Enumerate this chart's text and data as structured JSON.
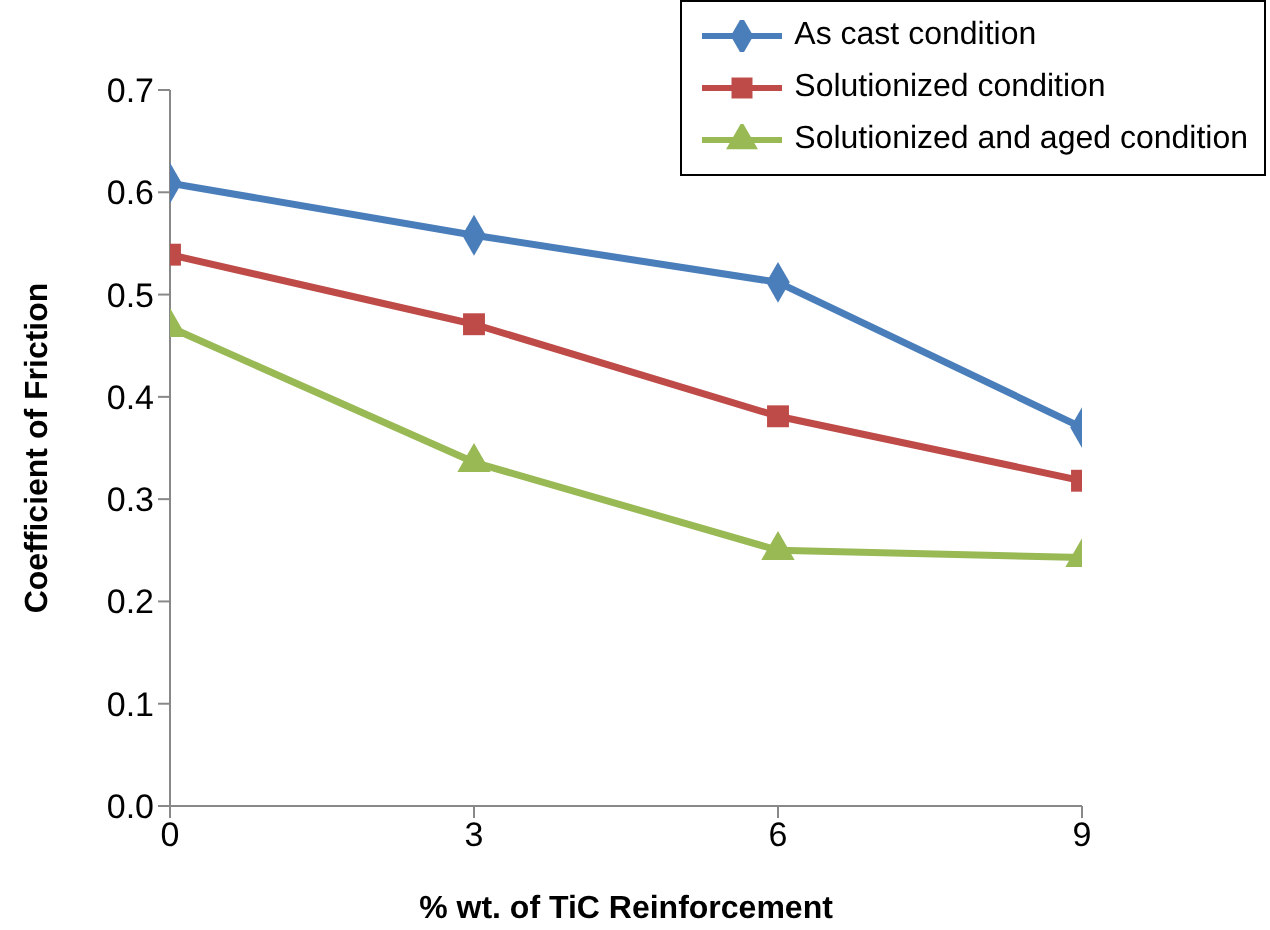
{
  "chart_data": {
    "type": "line",
    "xlabel": "% wt. of TiC Reinforcement",
    "ylabel": "Coefficient of Friction",
    "x": [
      0,
      3,
      6,
      9
    ],
    "xlim": [
      0,
      9
    ],
    "xticks": [
      0,
      3,
      6,
      9
    ],
    "ylim": [
      0,
      0.7
    ],
    "yticks": [
      {
        "value": 0,
        "label": "0.0"
      },
      0.1,
      0.2,
      0.3,
      0.4,
      0.5,
      0.6,
      0.7
    ],
    "grid": false,
    "legend": "top right",
    "series": [
      {
        "name": "As cast condition",
        "color": "#4a7ebb",
        "marker": "diamond",
        "values": [
          0.609,
          0.558,
          0.512,
          0.37
        ]
      },
      {
        "name": "Solutionized condition",
        "color": "#be4b48",
        "marker": "square",
        "values": [
          0.539,
          0.471,
          0.381,
          0.318
        ]
      },
      {
        "name": "Solutionized and aged condition",
        "color": "#98b954",
        "marker": "triangle",
        "values": [
          0.468,
          0.336,
          0.25,
          0.243
        ]
      }
    ]
  }
}
